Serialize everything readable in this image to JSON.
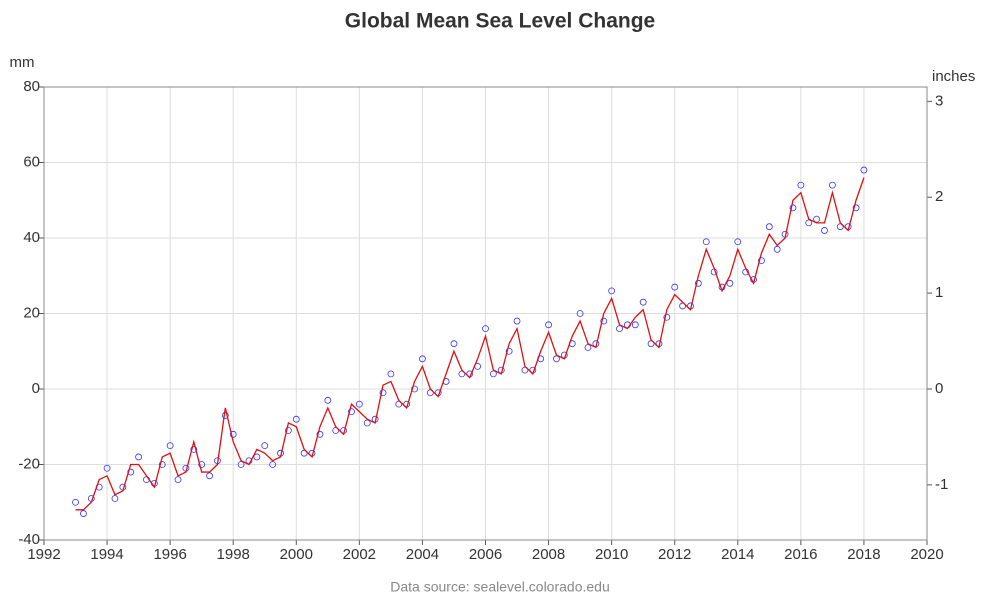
{
  "chart_data": {
    "type": "scatter",
    "title": "Global Mean Sea Level Change",
    "ylabel": "mm",
    "y2label": "inches",
    "source": "Data source: sealevel.colorado.edu",
    "x": [
      1993,
      1993.25,
      1993.5,
      1993.75,
      1994,
      1994.25,
      1994.5,
      1994.75,
      1995,
      1995.25,
      1995.5,
      1995.75,
      1996,
      1996.25,
      1996.5,
      1996.75,
      1997,
      1997.25,
      1997.5,
      1997.75,
      1998,
      1998.25,
      1998.5,
      1998.75,
      1999,
      1999.25,
      1999.5,
      1999.75,
      2000,
      2000.25,
      2000.5,
      2000.75,
      2001,
      2001.25,
      2001.5,
      2001.75,
      2002,
      2002.25,
      2002.5,
      2002.75,
      2003,
      2003.25,
      2003.5,
      2003.75,
      2004,
      2004.25,
      2004.5,
      2004.75,
      2005,
      2005.25,
      2005.5,
      2005.75,
      2006,
      2006.25,
      2006.5,
      2006.75,
      2007,
      2007.25,
      2007.5,
      2007.75,
      2008,
      2008.25,
      2008.5,
      2008.75,
      2009,
      2009.25,
      2009.5,
      2009.75,
      2010,
      2010.25,
      2010.5,
      2010.75,
      2011,
      2011.25,
      2011.5,
      2011.75,
      2012,
      2012.25,
      2012.5,
      2012.75,
      2013,
      2013.25,
      2013.5,
      2013.75,
      2014,
      2014.25,
      2014.5,
      2014.75,
      2015,
      2015.25,
      2015.5,
      2015.75,
      2016,
      2016.25,
      2016.5,
      2016.75,
      2017,
      2017.25,
      2017.5,
      2017.75,
      2018
    ],
    "series": [
      {
        "style": "markers",
        "color": "#3333ff",
        "values": [
          -30,
          -33,
          -29,
          -26,
          -21,
          -29,
          -26,
          -22,
          -18,
          -24,
          -25,
          -20,
          -15,
          -24,
          -21,
          -16,
          -20,
          -23,
          -19,
          -7,
          -12,
          -20,
          -19,
          -18,
          -15,
          -20,
          -17,
          -11,
          -8,
          -17,
          -17,
          -12,
          -3,
          -11,
          -11,
          -6,
          -4,
          -9,
          -8,
          -1,
          4,
          -4,
          -4,
          0,
          8,
          -1,
          -1,
          2,
          12,
          4,
          4,
          6,
          16,
          4,
          5,
          10,
          18,
          5,
          5,
          8,
          17,
          8,
          9,
          12,
          20,
          11,
          12,
          18,
          26,
          16,
          17,
          17,
          23,
          12,
          12,
          19,
          27,
          22,
          22,
          28,
          39,
          31,
          27,
          28,
          39,
          31,
          29,
          34,
          43,
          37,
          41,
          48,
          54,
          44,
          45,
          42,
          54,
          43,
          43,
          48,
          58
        ]
      },
      {
        "style": "line",
        "color": "#e01010",
        "values": [
          -32,
          -32,
          -30,
          -24,
          -23,
          -28,
          -27,
          -20,
          -20,
          -23,
          -26,
          -18,
          -17,
          -23,
          -22,
          -14,
          -22,
          -22,
          -20,
          -5,
          -14,
          -19,
          -20,
          -16,
          -17,
          -19,
          -18,
          -9,
          -10,
          -16,
          -18,
          -10,
          -5,
          -10,
          -12,
          -4,
          -6,
          -8,
          -9,
          1,
          2,
          -3,
          -5,
          2,
          6,
          0,
          -2,
          4,
          10,
          5,
          3,
          8,
          14,
          5,
          4,
          12,
          16,
          6,
          4,
          10,
          15,
          9,
          8,
          14,
          18,
          12,
          11,
          20,
          24,
          17,
          16,
          19,
          21,
          13,
          11,
          21,
          25,
          23,
          21,
          30,
          37,
          32,
          26,
          30,
          37,
          32,
          28,
          36,
          41,
          38,
          40,
          50,
          52,
          45,
          44,
          44,
          52,
          44,
          42,
          50,
          56
        ]
      }
    ],
    "xlim": [
      1992,
      2020
    ],
    "xticks": [
      1992,
      1994,
      1996,
      1998,
      2000,
      2002,
      2004,
      2006,
      2008,
      2010,
      2012,
      2014,
      2016,
      2018,
      2020
    ],
    "ylim": [
      -40,
      80
    ],
    "yticks": [
      -40,
      -20,
      0,
      20,
      40,
      60,
      80
    ],
    "y2lim": [
      -1.5748,
      3.1496
    ],
    "y2ticks": [
      -1,
      0,
      1,
      2,
      3
    ],
    "grid": true
  }
}
